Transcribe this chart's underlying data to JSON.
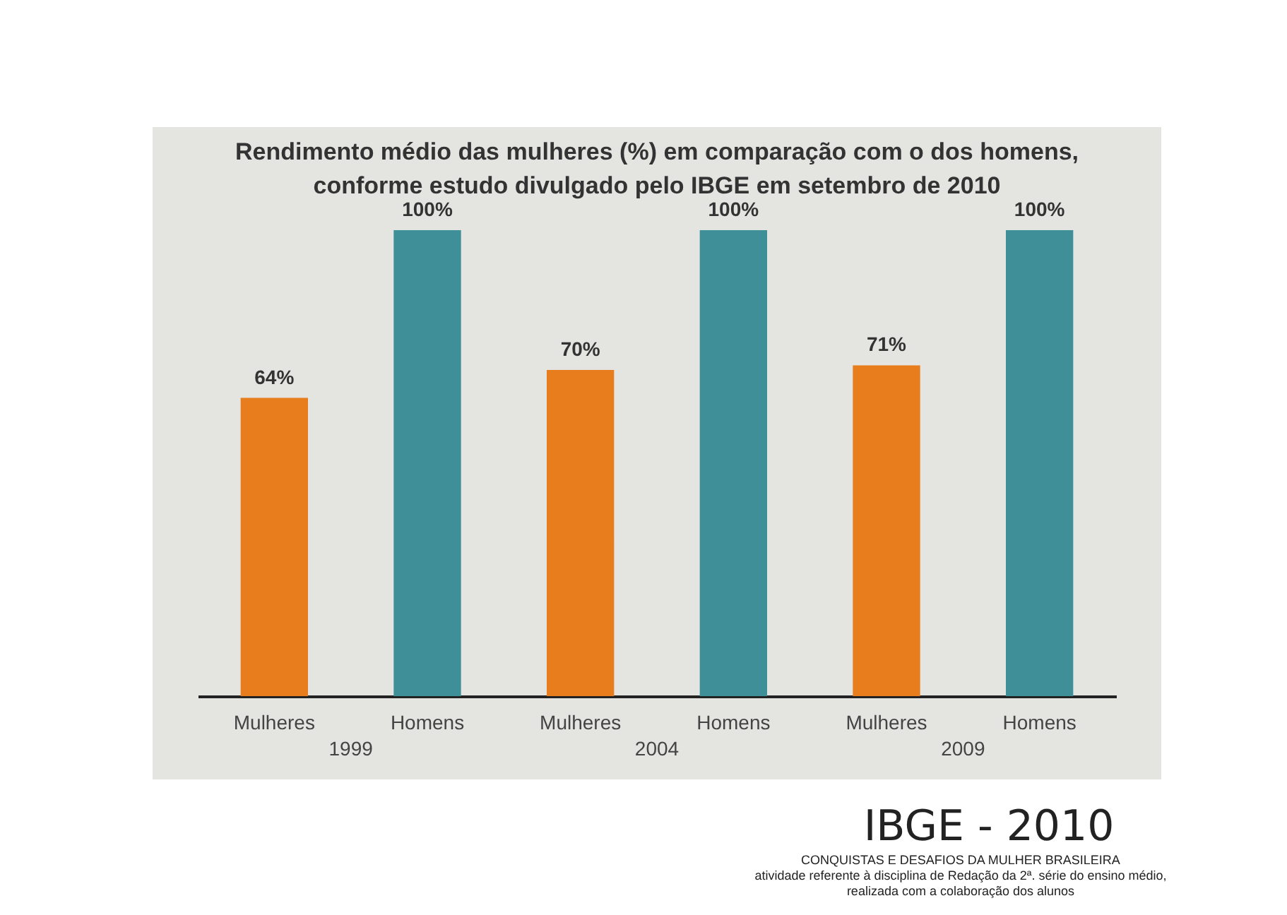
{
  "chart_data": {
    "type": "bar",
    "title": "Rendimento médio das mulheres (%) em comparação com o dos homens, conforme estudo divulgado pelo IBGE em setembro de 2010",
    "categories": [
      "Mulheres",
      "Homens",
      "Mulheres",
      "Homens",
      "Mulheres",
      "Homens"
    ],
    "values": [
      64,
      100,
      70,
      100,
      71,
      100
    ],
    "colors": [
      "#e87d1e",
      "#3f8f99",
      "#e87d1e",
      "#3f8f99",
      "#e87d1e",
      "#3f8f99"
    ],
    "value_labels": [
      "64%",
      "100%",
      "70%",
      "100%",
      "71%",
      "100%"
    ],
    "annotations": [
      "1999",
      "2004",
      "2009",
      "IBGE - 2010",
      "CONQUISTAS E DESAFIOS DA MULHER BRASILEIRA",
      "atividade referente à disciplina de Redação da 2ª. série do ensino médio,",
      "realizada com a colaboração dos alunos"
    ]
  }
}
